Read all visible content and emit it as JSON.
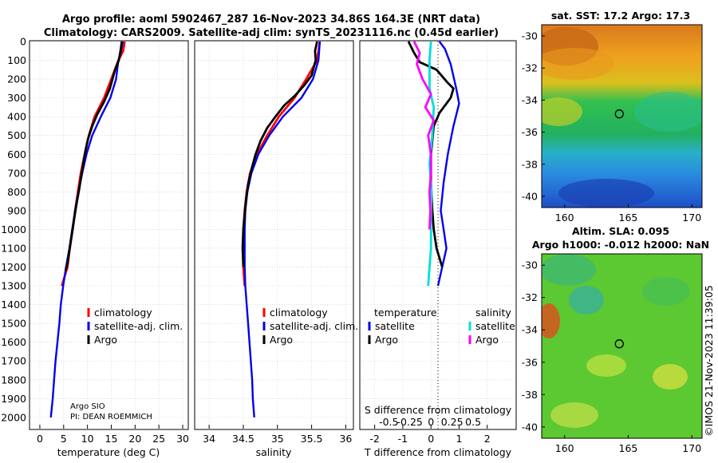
{
  "header": {
    "title_line1": "Argo profile: aoml 5902467_287 16-Nov-2023 34.86S 164.3E (NRT data)",
    "title_line2": "Climatology: CARS2009. Satellite-adj clim: synTS_20231116.nc (0.45d earlier)"
  },
  "colors": {
    "climatology": "#ff0000",
    "satellite_adj": "#0000ee",
    "argo": "#000000",
    "satellite_salinity": "#00dddd",
    "argo_salinity": "#ff00ff",
    "grid": "#bbbbbb"
  },
  "footer": {
    "watermark": "©IMOS 21-Nov-2023 11:39:05"
  },
  "chart_data": [
    {
      "id": "temperature",
      "type": "line",
      "xlabel": "temperature (deg C)",
      "xlim": [
        -2,
        31
      ],
      "xticks": [
        0,
        5,
        10,
        15,
        20,
        25,
        30
      ],
      "ylim": [
        0,
        2060
      ],
      "yticks": [
        0,
        100,
        200,
        300,
        400,
        500,
        600,
        700,
        800,
        900,
        1000,
        1100,
        1200,
        1300,
        1400,
        1500,
        1600,
        1700,
        1800,
        1900,
        2000
      ],
      "legend": [
        "climatology",
        "satellite-adj. clim.",
        "Argo"
      ],
      "credit": [
        "Argo SIO",
        "PI: DEAN ROEMMICH"
      ],
      "series": [
        {
          "name": "climatology",
          "color": "#ff0000",
          "points": [
            [
              17.8,
              0
            ],
            [
              17.5,
              50
            ],
            [
              16.5,
              100
            ],
            [
              15,
              200
            ],
            [
              13.5,
              300
            ],
            [
              11.5,
              400
            ],
            [
              10.3,
              500
            ],
            [
              9.4,
              600
            ],
            [
              8.6,
              700
            ],
            [
              8,
              800
            ],
            [
              7.4,
              900
            ],
            [
              6.9,
              1000
            ],
            [
              6.3,
              1100
            ],
            [
              5.8,
              1200
            ],
            [
              4.6,
              1300
            ]
          ]
        },
        {
          "name": "satellite-adj. clim.",
          "color": "#0000ee",
          "points": [
            [
              17.4,
              0
            ],
            [
              17,
              60
            ],
            [
              16.5,
              100
            ],
            [
              16,
              200
            ],
            [
              14.8,
              300
            ],
            [
              12.8,
              400
            ],
            [
              11,
              500
            ],
            [
              9.8,
              600
            ],
            [
              8.9,
              700
            ],
            [
              8.1,
              800
            ],
            [
              7.4,
              900
            ],
            [
              6.8,
              1000
            ],
            [
              6.2,
              1100
            ],
            [
              5.5,
              1200
            ],
            [
              4.9,
              1300
            ],
            [
              4.4,
              1400
            ],
            [
              4.1,
              1500
            ],
            [
              3.7,
              1600
            ],
            [
              3.3,
              1700
            ],
            [
              3,
              1800
            ],
            [
              2.7,
              1900
            ],
            [
              2.3,
              2000
            ]
          ]
        },
        {
          "name": "Argo",
          "color": "#000000",
          "points": [
            [
              17.2,
              0
            ],
            [
              17,
              40
            ],
            [
              16.6,
              100
            ],
            [
              15.8,
              150
            ],
            [
              14.7,
              250
            ],
            [
              13.5,
              320
            ],
            [
              12,
              390
            ],
            [
              11,
              450
            ],
            [
              10.1,
              520
            ],
            [
              9.6,
              580
            ],
            [
              8.9,
              680
            ],
            [
              8.3,
              780
            ],
            [
              7.6,
              880
            ],
            [
              7,
              980
            ],
            [
              6.4,
              1080
            ],
            [
              5.8,
              1180
            ],
            [
              5.4,
              1220
            ]
          ]
        }
      ]
    },
    {
      "id": "salinity",
      "type": "line",
      "xlabel": "salinity",
      "xlim": [
        33.8,
        36.1
      ],
      "xticks": [
        34,
        34.5,
        35,
        35.5,
        36
      ],
      "ylim": [
        0,
        2060
      ],
      "legend": [
        "climatology",
        "satellite-adj. clim.",
        "Argo"
      ],
      "series": [
        {
          "name": "climatology",
          "color": "#ff0000",
          "points": [
            [
              35.62,
              0
            ],
            [
              35.58,
              100
            ],
            [
              35.42,
              200
            ],
            [
              35.25,
              300
            ],
            [
              35.02,
              400
            ],
            [
              34.85,
              500
            ],
            [
              34.7,
              600
            ],
            [
              34.6,
              700
            ],
            [
              34.55,
              800
            ],
            [
              34.52,
              900
            ],
            [
              34.5,
              1000
            ],
            [
              34.5,
              1100
            ],
            [
              34.5,
              1200
            ],
            [
              34.52,
              1300
            ]
          ]
        },
        {
          "name": "satellite-adj. clim.",
          "color": "#0000ee",
          "points": [
            [
              35.62,
              0
            ],
            [
              35.6,
              100
            ],
            [
              35.52,
              200
            ],
            [
              35.35,
              300
            ],
            [
              35.08,
              400
            ],
            [
              34.88,
              500
            ],
            [
              34.72,
              600
            ],
            [
              34.62,
              700
            ],
            [
              34.56,
              800
            ],
            [
              34.53,
              900
            ],
            [
              34.52,
              1000
            ],
            [
              34.52,
              1100
            ],
            [
              34.52,
              1200
            ],
            [
              34.53,
              1300
            ],
            [
              34.55,
              1400
            ],
            [
              34.57,
              1500
            ],
            [
              34.59,
              1600
            ],
            [
              34.61,
              1700
            ],
            [
              34.63,
              1800
            ],
            [
              34.64,
              1900
            ],
            [
              34.66,
              2000
            ]
          ]
        },
        {
          "name": "Argo",
          "color": "#000000",
          "points": [
            [
              35.58,
              0
            ],
            [
              35.55,
              50
            ],
            [
              35.56,
              100
            ],
            [
              35.5,
              180
            ],
            [
              35.4,
              230
            ],
            [
              35.25,
              290
            ],
            [
              35.1,
              340
            ],
            [
              34.97,
              400
            ],
            [
              34.85,
              460
            ],
            [
              34.75,
              530
            ],
            [
              34.68,
              600
            ],
            [
              34.62,
              680
            ],
            [
              34.57,
              760
            ],
            [
              34.54,
              840
            ],
            [
              34.52,
              920
            ],
            [
              34.5,
              1000
            ],
            [
              34.49,
              1100
            ],
            [
              34.5,
              1200
            ]
          ]
        }
      ]
    },
    {
      "id": "difference",
      "type": "line",
      "xlabel": "T difference from climatology",
      "xlabel_top": "S difference from climatology",
      "xlim": [
        -2.5,
        3
      ],
      "xticks": [
        -2,
        -1,
        0,
        1,
        2
      ],
      "sticks_pos": [
        -1.5,
        -0.75,
        0,
        0.75,
        1.5
      ],
      "sticks_label": [
        "-0.5",
        "-0.25",
        "0",
        "0.25",
        "0.5"
      ],
      "legend_left_title": "temperature",
      "legend_right_title": "salinity",
      "legend_left": [
        "satellite",
        "Argo"
      ],
      "legend_right": [
        "satellite",
        "Argo"
      ],
      "series": [
        {
          "name": "temperature satellite",
          "color": "#0000ee",
          "points": [
            [
              0.3,
              0
            ],
            [
              0.5,
              40
            ],
            [
              0.7,
              120
            ],
            [
              0.9,
              250
            ],
            [
              1,
              330
            ],
            [
              0.8,
              450
            ],
            [
              0.6,
              600
            ],
            [
              0.45,
              750
            ],
            [
              0.35,
              900
            ],
            [
              0.45,
              1000
            ],
            [
              0.55,
              1100
            ],
            [
              0.4,
              1200
            ],
            [
              0.25,
              1300
            ]
          ]
        },
        {
          "name": "temperature Argo",
          "color": "#000000",
          "points": [
            [
              -0.8,
              0
            ],
            [
              -0.6,
              60
            ],
            [
              -0.4,
              110
            ],
            [
              0.2,
              150
            ],
            [
              0.6,
              220
            ],
            [
              0.8,
              250
            ],
            [
              0.7,
              300
            ],
            [
              0.3,
              380
            ],
            [
              0.1,
              450
            ],
            [
              0,
              600
            ],
            [
              0,
              750
            ],
            [
              0.05,
              900
            ],
            [
              0.1,
              1000
            ],
            [
              0.2,
              1100
            ],
            [
              0.4,
              1200
            ]
          ]
        },
        {
          "name": "salinity satellite",
          "color": "#00dddd",
          "points": [
            [
              0,
              0
            ],
            [
              -0.05,
              100
            ],
            [
              -0.05,
              250
            ],
            [
              0.1,
              350
            ],
            [
              0.05,
              500
            ],
            [
              -0.05,
              650
            ],
            [
              0.02,
              800
            ],
            [
              0,
              950
            ],
            [
              0,
              1100
            ],
            [
              -0.05,
              1200
            ],
            [
              -0.1,
              1300
            ]
          ]
        },
        {
          "name": "salinity Argo",
          "color": "#ff00ff",
          "points": [
            [
              -0.6,
              0
            ],
            [
              -0.4,
              60
            ],
            [
              -0.5,
              120
            ],
            [
              -0.3,
              200
            ],
            [
              0,
              280
            ],
            [
              -0.2,
              350
            ],
            [
              0.1,
              420
            ],
            [
              -0.1,
              500
            ],
            [
              0,
              600
            ],
            [
              0,
              700
            ],
            [
              -0.05,
              800
            ],
            [
              -0.02,
              900
            ],
            [
              -0.05,
              1000
            ]
          ]
        }
      ]
    },
    {
      "id": "sst_map",
      "type": "heatmap",
      "title": "sat. SST: 17.2 Argo: 17.3",
      "xlim": [
        158.2,
        170.8
      ],
      "ylim": [
        -40.7,
        -29.3
      ],
      "xticks": [
        160,
        165,
        170
      ],
      "yticks": [
        -30,
        -32,
        -34,
        -36,
        -38,
        -40
      ],
      "marker": [
        164.3,
        -34.86
      ]
    },
    {
      "id": "sla_map",
      "type": "heatmap",
      "title_line1": "Altim. SLA: 0.095",
      "title_line2": "Argo h1000: -0.012 h2000: NaN",
      "xlim": [
        158.2,
        170.8
      ],
      "ylim": [
        -40.7,
        -29.3
      ],
      "xticks": [
        160,
        165,
        170
      ],
      "yticks": [
        -30,
        -32,
        -34,
        -36,
        -38,
        -40
      ],
      "marker": [
        164.3,
        -34.86
      ]
    }
  ]
}
